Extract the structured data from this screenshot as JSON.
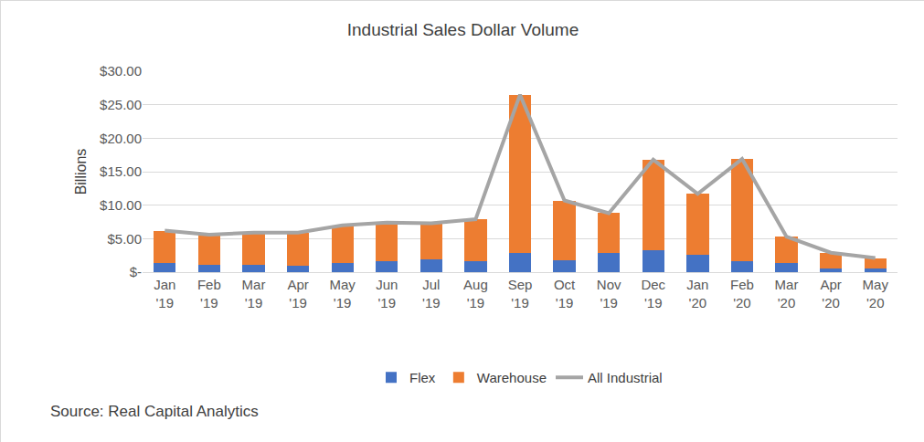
{
  "chart_data": {
    "type": "bar",
    "title": "Industrial Sales Dollar Volume",
    "y_label": "Billions",
    "annotations": [
      {
        "text": "Source: Real Capital Analytics"
      }
    ],
    "categories": [
      "Jan '19",
      "Feb '19",
      "Mar '19",
      "Apr '19",
      "May '19",
      "Jun '19",
      "Jul '19",
      "Aug '19",
      "Sep '19",
      "Oct '19",
      "Nov '19",
      "Dec '19",
      "Jan '20",
      "Feb '20",
      "Mar '20",
      "Apr '20",
      "May '20"
    ],
    "stacked": true,
    "grid": true,
    "legend": "bottom",
    "ylim": [
      0,
      30
    ],
    "yticks": [
      {
        "value": 0,
        "label": "$-"
      },
      {
        "value": 5,
        "label": "$5.00"
      },
      {
        "value": 10,
        "label": "$10.00"
      },
      {
        "value": 15,
        "label": "$15.00"
      },
      {
        "value": 20,
        "label": "$20.00"
      },
      {
        "value": 25,
        "label": "$25.00"
      },
      {
        "value": 30,
        "label": "$30.00"
      }
    ],
    "series": [
      {
        "name": "Flex",
        "type": "bar",
        "color": "#4472c4",
        "values": [
          1.4,
          1.1,
          1.1,
          1.0,
          1.3,
          1.6,
          1.9,
          1.6,
          2.9,
          1.8,
          2.9,
          3.3,
          2.6,
          1.7,
          1.3,
          0.6,
          0.6
        ]
      },
      {
        "name": "Warehouse",
        "type": "bar",
        "color": "#ed7d31",
        "values": [
          4.8,
          4.5,
          4.8,
          4.9,
          5.7,
          5.8,
          5.4,
          6.3,
          23.6,
          8.9,
          5.9,
          13.5,
          9.1,
          15.2,
          4.0,
          2.3,
          1.5
        ]
      },
      {
        "name": "All Industrial",
        "type": "line",
        "color": "#a5a5a5",
        "values": [
          6.2,
          5.6,
          5.9,
          5.9,
          7.0,
          7.4,
          7.3,
          7.9,
          26.5,
          10.7,
          8.8,
          16.8,
          11.7,
          16.9,
          5.3,
          2.9,
          2.1
        ]
      }
    ]
  }
}
